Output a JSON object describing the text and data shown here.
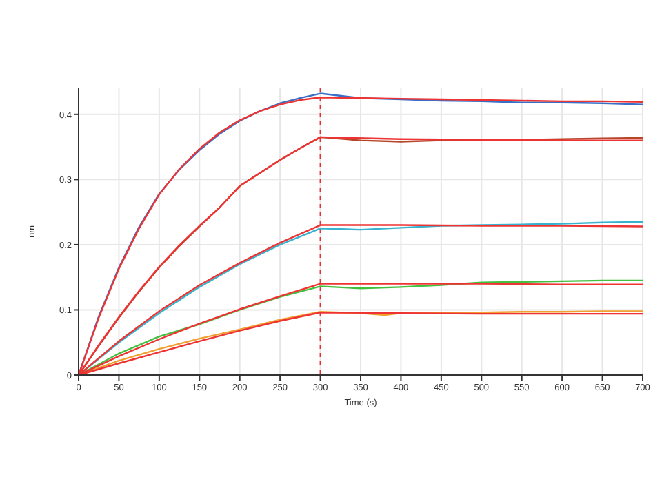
{
  "chart_data": {
    "type": "line",
    "xlabel": "Time (s)",
    "ylabel": "nm",
    "xlim": [
      0,
      700
    ],
    "ylim": [
      0,
      0.44
    ],
    "xticks": [
      0,
      50,
      100,
      150,
      200,
      250,
      300,
      350,
      400,
      450,
      500,
      550,
      600,
      650,
      700
    ],
    "yticks": [
      0,
      0.1,
      0.2,
      0.3,
      0.4
    ],
    "grid": true,
    "marker": "none",
    "line_style": "solid",
    "ref_lines": [
      {
        "axis": "x",
        "value": 300,
        "color": "#e83030",
        "line_style": "dashed"
      }
    ],
    "series": [
      {
        "color": "#3a6fc8",
        "x": [
          0,
          25,
          50,
          75,
          100,
          125,
          150,
          175,
          200,
          225,
          250,
          275,
          300,
          350,
          400,
          450,
          500,
          550,
          600,
          650,
          700
        ],
        "values": [
          0,
          0.09,
          0.165,
          0.227,
          0.278,
          0.315,
          0.345,
          0.37,
          0.39,
          0.405,
          0.417,
          0.425,
          0.432,
          0.425,
          0.423,
          0.421,
          0.42,
          0.418,
          0.418,
          0.417,
          0.415
        ]
      },
      {
        "color": "#b5462a",
        "x": [
          0,
          25,
          50,
          75,
          100,
          125,
          150,
          175,
          200,
          225,
          250,
          275,
          300,
          350,
          400,
          450,
          500,
          550,
          600,
          650,
          700
        ],
        "values": [
          0,
          0.045,
          0.088,
          0.128,
          0.165,
          0.198,
          0.228,
          0.257,
          0.29,
          0.31,
          0.33,
          0.348,
          0.365,
          0.36,
          0.358,
          0.36,
          0.36,
          0.361,
          0.362,
          0.363,
          0.364
        ]
      },
      {
        "color": "#38b3cf",
        "x": [
          0,
          50,
          100,
          150,
          200,
          250,
          300,
          350,
          400,
          450,
          500,
          550,
          600,
          650,
          700
        ],
        "values": [
          0,
          0.05,
          0.095,
          0.135,
          0.17,
          0.2,
          0.225,
          0.223,
          0.226,
          0.229,
          0.23,
          0.231,
          0.232,
          0.234,
          0.235
        ]
      },
      {
        "color": "#44c040",
        "x": [
          0,
          50,
          100,
          150,
          200,
          250,
          300,
          350,
          400,
          450,
          500,
          550,
          600,
          650,
          700
        ],
        "values": [
          0,
          0.033,
          0.059,
          0.078,
          0.1,
          0.12,
          0.136,
          0.133,
          0.135,
          0.138,
          0.142,
          0.143,
          0.144,
          0.145,
          0.145
        ]
      },
      {
        "color": "#f0a030",
        "x": [
          0,
          50,
          100,
          150,
          200,
          250,
          300,
          350,
          380,
          400,
          450,
          500,
          550,
          600,
          650,
          700
        ],
        "values": [
          0,
          0.022,
          0.04,
          0.056,
          0.07,
          0.085,
          0.097,
          0.095,
          0.092,
          0.095,
          0.096,
          0.096,
          0.097,
          0.097,
          0.098,
          0.098
        ]
      },
      {
        "color": "#ee3333",
        "x": [
          0,
          25,
          50,
          75,
          100,
          125,
          150,
          175,
          200,
          225,
          250,
          275,
          300,
          350,
          400,
          450,
          500,
          550,
          600,
          650,
          700
        ],
        "values": [
          0,
          0.088,
          0.163,
          0.225,
          0.277,
          0.316,
          0.347,
          0.372,
          0.391,
          0.405,
          0.415,
          0.422,
          0.426,
          0.425,
          0.424,
          0.423,
          0.422,
          0.421,
          0.42,
          0.42,
          0.419
        ]
      },
      {
        "color": "#ee3333",
        "x": [
          0,
          25,
          50,
          75,
          100,
          125,
          150,
          175,
          200,
          225,
          250,
          275,
          300,
          400,
          500,
          600,
          700
        ],
        "values": [
          0,
          0.046,
          0.089,
          0.129,
          0.166,
          0.199,
          0.229,
          0.257,
          0.29,
          0.31,
          0.33,
          0.348,
          0.365,
          0.362,
          0.361,
          0.36,
          0.36
        ]
      },
      {
        "color": "#ee3333",
        "x": [
          0,
          50,
          100,
          150,
          200,
          250,
          300,
          400,
          500,
          600,
          700
        ],
        "values": [
          0,
          0.052,
          0.098,
          0.138,
          0.172,
          0.203,
          0.23,
          0.23,
          0.229,
          0.229,
          0.228
        ]
      },
      {
        "color": "#ee3333",
        "x": [
          0,
          50,
          100,
          150,
          200,
          250,
          300,
          400,
          500,
          600,
          700
        ],
        "values": [
          0,
          0.029,
          0.055,
          0.079,
          0.101,
          0.121,
          0.14,
          0.14,
          0.14,
          0.139,
          0.139
        ]
      },
      {
        "color": "#ee3333",
        "x": [
          0,
          50,
          100,
          150,
          200,
          250,
          300,
          400,
          500,
          600,
          700
        ],
        "values": [
          0,
          0.018,
          0.035,
          0.052,
          0.068,
          0.083,
          0.096,
          0.095,
          0.094,
          0.094,
          0.094
        ]
      }
    ]
  }
}
